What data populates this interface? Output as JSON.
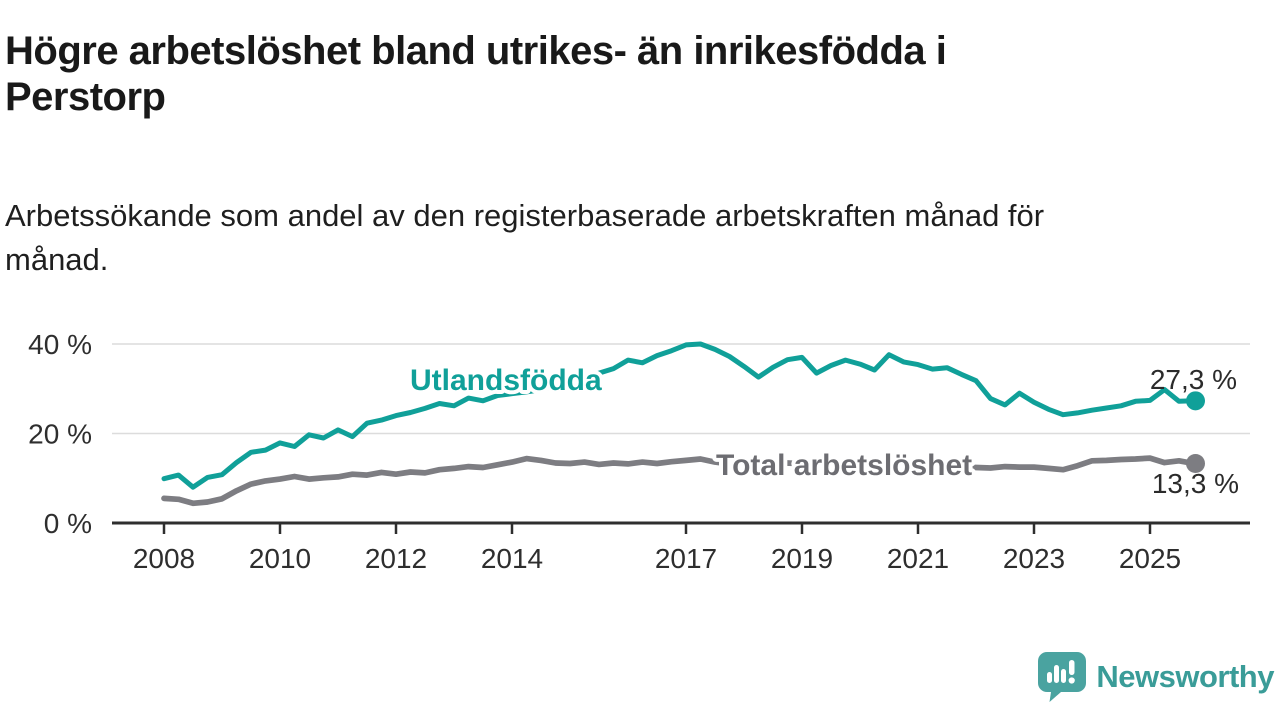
{
  "title": {
    "lines": [
      "Högre arbetslöshet bland utrikes- än inrikesfödda i",
      "Perstorp"
    ]
  },
  "subtitle": {
    "lines": [
      "Arbetssökande som andel av den registerbaserade arbetskraften månad för",
      "månad."
    ]
  },
  "branding": {
    "logo_text": "Newsworthy",
    "logo_icon": "bar-chart-speech-bubble-icon",
    "brand_teal": "#3a9c98"
  },
  "colors": {
    "series_teal": "#10A099",
    "series_gray": "#7D7D82",
    "label_gray": "#6d6d72",
    "axis_dark": "#2e2e2e",
    "gridline": "#dcdcdc",
    "value_label": "#2b2b2b"
  },
  "chart_data": {
    "type": "line",
    "unit": "%",
    "x_unit": "decimal_year_quarterly_sampled_monthly_series",
    "grid": "horizontal",
    "legend_position": "inline-labels",
    "ylim": [
      0,
      44
    ],
    "x_ticks": [
      2008,
      2010,
      2012,
      2014,
      2017,
      2019,
      2021,
      2023,
      2025
    ],
    "y_ticks": [
      {
        "value": 0,
        "label": "0 %"
      },
      {
        "value": 20,
        "label": "20 %"
      },
      {
        "value": 40,
        "label": "40 %"
      }
    ],
    "x": [
      2008.0,
      2008.25,
      2008.5,
      2008.75,
      2009.0,
      2009.25,
      2009.5,
      2009.75,
      2010.0,
      2010.25,
      2010.5,
      2010.75,
      2011.0,
      2011.25,
      2011.5,
      2011.75,
      2012.0,
      2012.25,
      2012.5,
      2012.75,
      2013.0,
      2013.25,
      2013.5,
      2013.75,
      2014.0,
      2014.25,
      2014.5,
      2014.75,
      2015.0,
      2015.25,
      2015.5,
      2015.75,
      2016.0,
      2016.25,
      2016.5,
      2016.75,
      2017.0,
      2017.25,
      2017.5,
      2017.75,
      2018.0,
      2018.25,
      2018.5,
      2018.75,
      2019.0,
      2019.25,
      2019.5,
      2019.75,
      2020.0,
      2020.25,
      2020.5,
      2020.75,
      2021.0,
      2021.25,
      2021.5,
      2021.75,
      2022.0,
      2022.25,
      2022.5,
      2022.75,
      2023.0,
      2023.25,
      2023.5,
      2023.75,
      2024.0,
      2024.25,
      2024.5,
      2024.75,
      2025.0,
      2025.25,
      2025.5,
      2025.75
    ],
    "series": [
      {
        "name": "Utlandsfödda",
        "end_label": "27,3 %",
        "end_value": 27.3,
        "values": [
          9.9,
          10.7,
          8.0,
          10.2,
          10.8,
          13.5,
          15.8,
          16.3,
          17.9,
          17.1,
          19.7,
          19.0,
          20.8,
          19.3,
          22.3,
          23.0,
          24.0,
          24.7,
          25.6,
          26.7,
          26.2,
          27.9,
          27.3,
          28.5,
          28.9,
          29.3,
          29.8,
          30.5,
          31.5,
          32.5,
          33.5,
          34.5,
          36.4,
          35.8,
          37.4,
          38.5,
          39.8,
          40.0,
          38.8,
          37.2,
          35.0,
          32.6,
          34.8,
          36.5,
          37.0,
          33.5,
          35.2,
          36.4,
          35.5,
          34.2,
          37.6,
          36.0,
          35.4,
          34.4,
          34.7,
          33.2,
          31.8,
          27.8,
          26.4,
          29.0,
          27.0,
          25.4,
          24.2,
          24.6,
          25.2,
          25.7,
          26.2,
          27.2,
          27.4,
          29.8,
          27.2,
          27.3
        ]
      },
      {
        "name": "Total arbetslöshet",
        "end_label": "13,3 %",
        "end_value": 13.3,
        "values": [
          5.5,
          5.3,
          4.4,
          4.7,
          5.4,
          7.2,
          8.7,
          9.4,
          9.8,
          10.4,
          9.8,
          10.1,
          10.3,
          10.9,
          10.7,
          11.3,
          10.9,
          11.4,
          11.2,
          11.9,
          12.2,
          12.6,
          12.4,
          13.0,
          13.6,
          14.4,
          14.0,
          13.4,
          13.3,
          13.6,
          13.1,
          13.4,
          13.2,
          13.6,
          13.3,
          13.7,
          14.0,
          14.3,
          13.6,
          13.2,
          13.8,
          13.5,
          13.3,
          13.4,
          13.2,
          13.0,
          12.9,
          13.0,
          13.1,
          13.3,
          13.2,
          13.0,
          12.8,
          12.6,
          12.5,
          12.4,
          12.4,
          12.3,
          12.6,
          12.5,
          12.5,
          12.2,
          11.9,
          12.8,
          13.9,
          14.0,
          14.2,
          14.3,
          14.5,
          13.5,
          13.9,
          13.3
        ]
      }
    ]
  }
}
